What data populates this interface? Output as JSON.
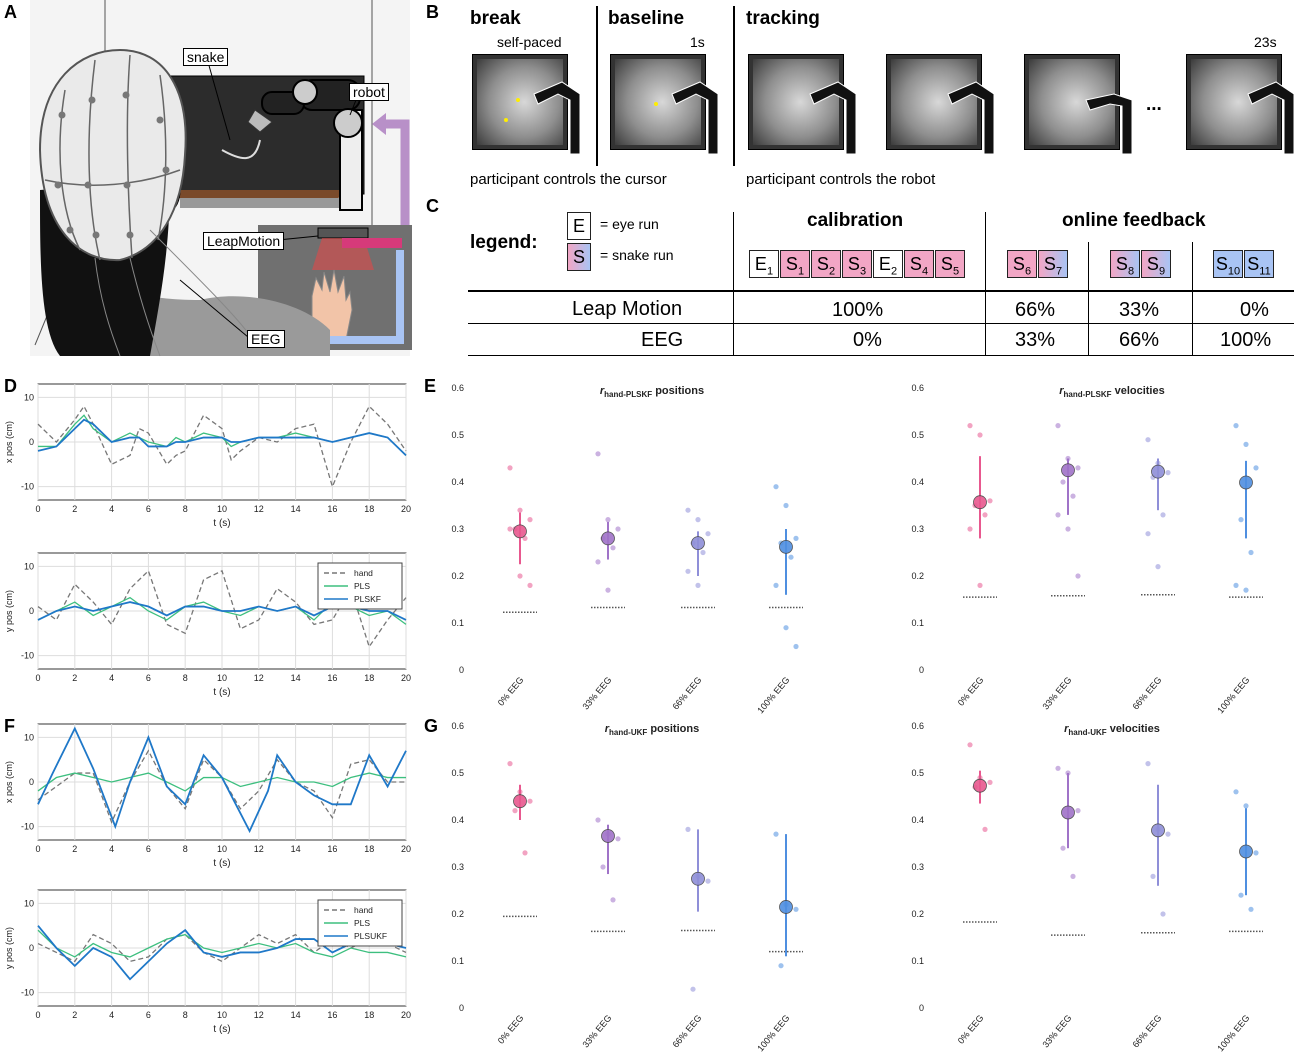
{
  "panels": {
    "A": "A",
    "B": "B",
    "C": "C",
    "D": "D",
    "E": "E",
    "F": "F",
    "G": "G"
  },
  "panelA": {
    "labels": {
      "snake": "snake",
      "robot": "robot",
      "leap": "LeapMotion",
      "eeg": "EEG"
    }
  },
  "panelB": {
    "phases": {
      "break": "break",
      "baseline": "baseline",
      "tracking": "tracking"
    },
    "timing": {
      "selfpaced": "self-paced",
      "one_s": "1s",
      "t23": "23s"
    },
    "ellipsis": "...",
    "captions": {
      "cursor": "participant controls the cursor",
      "robot": "participant controls the robot"
    }
  },
  "panelC": {
    "legend_title": "legend:",
    "legend": {
      "eye_box": "E",
      "eye_text": "= eye run",
      "snake_box": "S",
      "snake_text": "= snake run"
    },
    "headers": {
      "calibration": "calibration",
      "online": "online feedback"
    },
    "runs": {
      "calibration": [
        {
          "l": "E",
          "n": "1",
          "c": "white"
        },
        {
          "l": "S",
          "n": "1",
          "c": "pink"
        },
        {
          "l": "S",
          "n": "2",
          "c": "pink"
        },
        {
          "l": "S",
          "n": "3",
          "c": "pink"
        },
        {
          "l": "E",
          "n": "2",
          "c": "white"
        },
        {
          "l": "S",
          "n": "4",
          "c": "pink"
        },
        {
          "l": "S",
          "n": "5",
          "c": "pink"
        }
      ],
      "g1": [
        {
          "l": "S",
          "n": "6",
          "c": "pink"
        },
        {
          "l": "S",
          "n": "7",
          "c": "mix"
        }
      ],
      "g2": [
        {
          "l": "S",
          "n": "8",
          "c": "mix"
        },
        {
          "l": "S",
          "n": "9",
          "c": "mix"
        }
      ],
      "g3": [
        {
          "l": "S",
          "n": "10",
          "c": "blue"
        },
        {
          "l": "S",
          "n": "11",
          "c": "blue"
        }
      ]
    },
    "rows": [
      {
        "label": "Leap Motion",
        "values": [
          "100%",
          "66%",
          "33%",
          "0%"
        ]
      },
      {
        "label": "EEG",
        "values": [
          "0%",
          "33%",
          "66%",
          "100%"
        ]
      }
    ]
  },
  "colors": {
    "hand": "#777777",
    "pls": "#3dbf7f",
    "kf": "#1f78c8",
    "c0": "#e8588f",
    "c33": "#a073c8",
    "c66": "#8f8fd8",
    "c100": "#4f8fe0"
  },
  "chart_data": [
    {
      "type": "line",
      "panel": "D",
      "title": "",
      "xlabel": "t (s)",
      "ylabel": "x pos (cm)",
      "xlim": [
        0,
        20
      ],
      "ylim": [
        -13,
        13
      ],
      "xticks": [
        0,
        2,
        4,
        6,
        8,
        10,
        12,
        14,
        16,
        18,
        20
      ],
      "yticks": [
        -10,
        0,
        10
      ],
      "grid": true,
      "series": [
        {
          "name": "hand",
          "t": [
            0,
            1,
            2,
            2.5,
            3,
            4,
            5,
            5.5,
            6,
            7,
            7.5,
            8,
            9,
            10,
            10.5,
            11,
            12,
            13,
            14,
            15,
            16,
            17,
            18,
            19,
            20
          ],
          "values": [
            4,
            0,
            5,
            8,
            4,
            -5,
            -3,
            3,
            2,
            -5,
            -3,
            -2,
            6,
            3,
            -4,
            -2,
            1,
            0,
            3,
            4,
            -10,
            0,
            8,
            4,
            -2
          ]
        },
        {
          "name": "PLS",
          "t": [
            0,
            1,
            2,
            2.5,
            3,
            4,
            5,
            5.5,
            6,
            7,
            7.5,
            8,
            9,
            10,
            10.5,
            11,
            12,
            13,
            14,
            15,
            16,
            17,
            18,
            19,
            20
          ],
          "values": [
            -1,
            -1,
            4,
            6,
            3,
            0,
            2,
            1,
            0,
            -1,
            1,
            0,
            2,
            1,
            -1,
            0,
            1,
            1,
            2,
            1,
            0,
            1,
            2,
            1,
            -3
          ]
        },
        {
          "name": "PLSKF",
          "t": [
            0,
            1,
            2,
            2.5,
            3,
            4,
            5,
            5.5,
            6,
            7,
            7.5,
            8,
            9,
            10,
            10.5,
            11,
            12,
            13,
            14,
            15,
            16,
            17,
            18,
            19,
            20
          ],
          "values": [
            -2,
            -1,
            3,
            5,
            4,
            0,
            1,
            1,
            -1,
            -1,
            0,
            0,
            1,
            1,
            0,
            0,
            1,
            1,
            1,
            1,
            0,
            1,
            2,
            1,
            -3
          ]
        }
      ]
    },
    {
      "type": "line",
      "panel": "D",
      "title": "",
      "xlabel": "t (s)",
      "ylabel": "y pos (cm)",
      "xlim": [
        0,
        20
      ],
      "ylim": [
        -13,
        13
      ],
      "xticks": [
        0,
        2,
        4,
        6,
        8,
        10,
        12,
        14,
        16,
        18,
        20
      ],
      "yticks": [
        -10,
        0,
        10
      ],
      "grid": true,
      "legend": "top-right",
      "series": [
        {
          "name": "hand",
          "t": [
            0,
            1,
            2,
            3,
            4,
            5,
            6,
            7,
            8,
            9,
            10,
            11,
            12,
            13,
            14,
            15,
            16,
            17,
            18,
            19,
            20
          ],
          "values": [
            1,
            -2,
            6,
            2,
            -3,
            5,
            9,
            -3,
            -5,
            7,
            9,
            -4,
            -2,
            5,
            2,
            -3,
            -2,
            5,
            -8,
            -2,
            3
          ]
        },
        {
          "name": "PLS",
          "t": [
            0,
            1,
            2,
            3,
            4,
            5,
            6,
            7,
            8,
            9,
            10,
            11,
            12,
            13,
            14,
            15,
            16,
            17,
            18,
            19,
            20
          ],
          "values": [
            -2,
            0,
            2,
            -1,
            1,
            3,
            0,
            -2,
            1,
            2,
            0,
            -1,
            1,
            0,
            1,
            -2,
            2,
            1,
            -1,
            0,
            -3
          ]
        },
        {
          "name": "PLSKF",
          "t": [
            0,
            1,
            2,
            3,
            4,
            5,
            6,
            7,
            8,
            9,
            10,
            11,
            12,
            13,
            14,
            15,
            16,
            17,
            18,
            19,
            20
          ],
          "values": [
            -2,
            0,
            1,
            0,
            1,
            2,
            1,
            -1,
            1,
            1,
            0,
            0,
            1,
            0,
            1,
            -1,
            1,
            1,
            0,
            0,
            -2
          ]
        }
      ]
    },
    {
      "type": "scatter",
      "panel": "E",
      "title": "r hand-PLSKF positions",
      "xlabel": "",
      "ylabel": "",
      "ylim": [
        0,
        0.6
      ],
      "yticks": [
        0,
        0.1,
        0.2,
        0.3,
        0.4,
        0.5,
        0.6
      ],
      "categories": [
        "0% EEG",
        "33% EEG",
        "66% EEG",
        "100% EEG"
      ],
      "mean": [
        0.295,
        0.28,
        0.27,
        0.262
      ],
      "err_lo": [
        0.225,
        0.235,
        0.2,
        0.16
      ],
      "err_hi": [
        0.335,
        0.315,
        0.295,
        0.3
      ],
      "chance": [
        0.123,
        0.133,
        0.133,
        0.133
      ],
      "points": [
        [
          0.43,
          0.34,
          0.32,
          0.3,
          0.28,
          0.3,
          0.2,
          0.18
        ],
        [
          0.46,
          0.32,
          0.3,
          0.28,
          0.26,
          0.23,
          0.17
        ],
        [
          0.34,
          0.32,
          0.29,
          0.27,
          0.25,
          0.21,
          0.18
        ],
        [
          0.39,
          0.35,
          0.28,
          0.27,
          0.24,
          0.18,
          0.09,
          0.05
        ]
      ]
    },
    {
      "type": "scatter",
      "panel": "E",
      "title": "r hand-PLSKF velocities",
      "xlabel": "",
      "ylabel": "",
      "ylim": [
        0,
        0.6
      ],
      "yticks": [
        0,
        0.1,
        0.2,
        0.3,
        0.4,
        0.5,
        0.6
      ],
      "categories": [
        "0% EEG",
        "33% EEG",
        "66% EEG",
        "100% EEG"
      ],
      "mean": [
        0.357,
        0.425,
        0.422,
        0.399
      ],
      "err_lo": [
        0.28,
        0.33,
        0.34,
        0.28
      ],
      "err_hi": [
        0.455,
        0.45,
        0.45,
        0.445
      ],
      "chance": [
        0.155,
        0.158,
        0.16,
        0.155
      ],
      "points": [
        [
          0.52,
          0.5,
          0.36,
          0.35,
          0.33,
          0.3,
          0.18
        ],
        [
          0.52,
          0.45,
          0.43,
          0.4,
          0.37,
          0.33,
          0.3,
          0.2
        ],
        [
          0.49,
          0.44,
          0.42,
          0.41,
          0.33,
          0.29,
          0.22
        ],
        [
          0.52,
          0.48,
          0.43,
          0.32,
          0.25,
          0.18,
          0.17
        ]
      ]
    },
    {
      "type": "line",
      "panel": "F",
      "title": "",
      "xlabel": "t (s)",
      "ylabel": "x pos (cm)",
      "xlim": [
        0,
        20
      ],
      "ylim": [
        -13,
        13
      ],
      "xticks": [
        0,
        2,
        4,
        6,
        8,
        10,
        12,
        14,
        16,
        18,
        20
      ],
      "yticks": [
        -10,
        0,
        10
      ],
      "grid": true,
      "series": [
        {
          "name": "hand",
          "t": [
            0,
            1,
            2,
            3,
            4,
            5,
            6,
            7,
            8,
            9,
            10,
            11,
            12,
            13,
            14,
            15,
            16,
            17,
            18,
            19,
            20
          ],
          "values": [
            -4,
            -1,
            2,
            2,
            -9,
            0,
            7,
            -1,
            -6,
            5,
            1,
            -6,
            -2,
            5,
            0,
            -2,
            -8,
            4,
            5,
            0,
            0
          ]
        },
        {
          "name": "PLS",
          "t": [
            0,
            1,
            2,
            3,
            4,
            5,
            6,
            7,
            8,
            9,
            10,
            11,
            12,
            13,
            14,
            15,
            16,
            17,
            18,
            19,
            20
          ],
          "values": [
            -2,
            1,
            2,
            1,
            0,
            1,
            2,
            0,
            -2,
            1,
            1,
            -1,
            0,
            1,
            0,
            0,
            -1,
            1,
            2,
            1,
            1
          ]
        },
        {
          "name": "PLSKF",
          "t": [
            0,
            0.8,
            2,
            3,
            4.2,
            5,
            6,
            7,
            8,
            9,
            10,
            11.5,
            12.5,
            13,
            14,
            15,
            16,
            17,
            18,
            19,
            20
          ],
          "values": [
            -5,
            2,
            12,
            3,
            -10,
            0,
            10,
            -1,
            -5,
            6,
            1,
            -11,
            -2,
            6,
            0,
            -3,
            -5,
            -5,
            6,
            -1,
            7
          ]
        }
      ]
    },
    {
      "type": "line",
      "panel": "F",
      "title": "",
      "xlabel": "t (s)",
      "ylabel": "y pos (cm)",
      "xlim": [
        0,
        20
      ],
      "ylim": [
        -13,
        13
      ],
      "xticks": [
        0,
        2,
        4,
        6,
        8,
        10,
        12,
        14,
        16,
        18,
        20
      ],
      "yticks": [
        -10,
        0,
        10
      ],
      "grid": true,
      "legend": "top-right",
      "series": [
        {
          "name": "hand",
          "t": [
            0,
            1,
            2,
            3,
            4,
            5,
            6,
            7,
            8,
            9,
            10,
            11,
            12,
            13,
            14,
            15,
            16,
            17,
            18,
            19,
            20
          ],
          "values": [
            1,
            -1,
            -3,
            3,
            1,
            -3,
            -2,
            2,
            3,
            -1,
            -3,
            0,
            3,
            1,
            3,
            -1,
            2,
            0,
            2,
            1,
            -1
          ]
        },
        {
          "name": "PLS",
          "t": [
            0,
            1,
            2,
            3,
            4,
            5,
            6,
            7,
            8,
            9,
            10,
            11,
            12,
            13,
            14,
            15,
            16,
            17,
            18,
            19,
            20
          ],
          "values": [
            4,
            0,
            -2,
            1,
            -1,
            -2,
            0,
            2,
            3,
            0,
            -1,
            0,
            1,
            0,
            1,
            -1,
            -2,
            0,
            -1,
            -1,
            -2
          ]
        },
        {
          "name": "PLSUKF",
          "t": [
            0,
            1,
            2,
            3,
            4,
            5,
            6,
            7,
            8,
            9,
            10,
            11,
            12,
            13,
            14,
            15,
            16,
            17,
            18,
            19,
            20
          ],
          "values": [
            5,
            0,
            -4,
            0,
            -2,
            -7,
            -3,
            1,
            4,
            -1,
            -2,
            -1,
            -1,
            0,
            2,
            2,
            -1,
            1,
            2,
            1,
            0
          ]
        }
      ]
    },
    {
      "type": "scatter",
      "panel": "G",
      "title": "r hand-UKF positions",
      "xlabel": "",
      "ylabel": "",
      "ylim": [
        0,
        0.6
      ],
      "yticks": [
        0,
        0.1,
        0.2,
        0.3,
        0.4,
        0.5,
        0.6
      ],
      "categories": [
        "0% EEG",
        "33% EEG",
        "66% EEG",
        "100% EEG"
      ],
      "mean": [
        0.44,
        0.366,
        0.275,
        0.215
      ],
      "err_lo": [
        0.4,
        0.285,
        0.205,
        0.11
      ],
      "err_hi": [
        0.475,
        0.39,
        0.38,
        0.37
      ],
      "chance": [
        0.195,
        0.163,
        0.165,
        0.12
      ],
      "points": [
        [
          0.52,
          0.46,
          0.44,
          0.42,
          0.33
        ],
        [
          0.4,
          0.37,
          0.36,
          0.3,
          0.23
        ],
        [
          0.38,
          0.28,
          0.27,
          0.04
        ],
        [
          0.37,
          0.22,
          0.21,
          0.09
        ]
      ]
    },
    {
      "type": "scatter",
      "panel": "G",
      "title": "r hand-UKF velocities",
      "xlabel": "",
      "ylabel": "",
      "ylim": [
        0,
        0.6
      ],
      "yticks": [
        0,
        0.1,
        0.2,
        0.3,
        0.4,
        0.5,
        0.6
      ],
      "categories": [
        "0% EEG",
        "33% EEG",
        "66% EEG",
        "100% EEG"
      ],
      "mean": [
        0.473,
        0.416,
        0.378,
        0.333
      ],
      "err_lo": [
        0.435,
        0.34,
        0.26,
        0.24
      ],
      "err_hi": [
        0.505,
        0.5,
        0.475,
        0.425
      ],
      "chance": [
        0.183,
        0.155,
        0.16,
        0.163
      ],
      "points": [
        [
          0.56,
          0.49,
          0.48,
          0.47,
          0.38
        ],
        [
          0.51,
          0.5,
          0.42,
          0.34,
          0.28
        ],
        [
          0.52,
          0.38,
          0.37,
          0.28,
          0.2
        ],
        [
          0.46,
          0.43,
          0.33,
          0.24,
          0.21
        ]
      ]
    }
  ]
}
